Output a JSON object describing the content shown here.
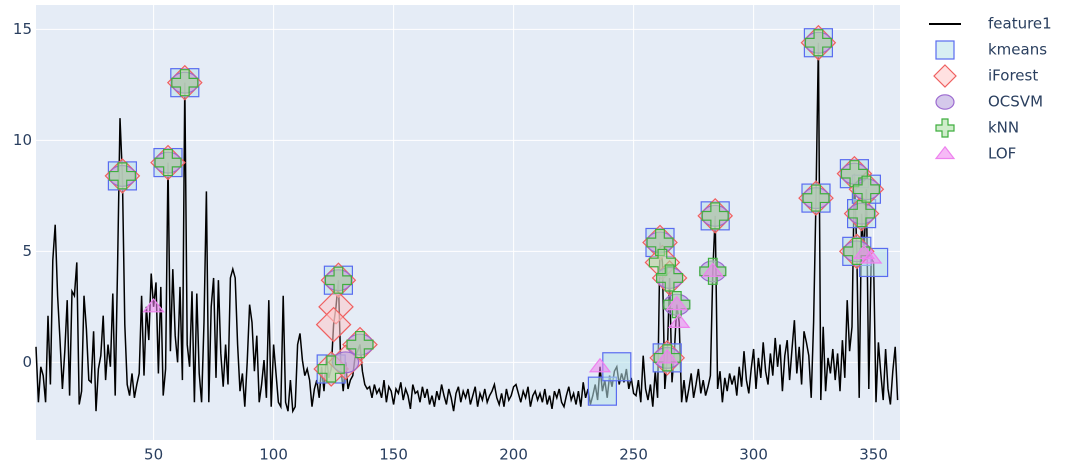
{
  "chart_data": {
    "type": "line",
    "xlim": [
      1,
      361
    ],
    "ylim": [
      -3.5,
      16.1
    ],
    "xticks": [
      50,
      100,
      150,
      200,
      250,
      300,
      350
    ],
    "yticks": [
      0,
      5,
      10,
      15
    ],
    "grid": true,
    "series": [
      {
        "name": "feature1",
        "color": "#000000",
        "symbol": "line",
        "x": [
          1,
          2,
          3,
          4,
          5,
          6,
          7,
          8,
          9,
          10,
          11,
          12,
          13,
          14,
          15,
          16,
          17,
          18,
          19,
          20,
          21,
          22,
          23,
          24,
          25,
          26,
          27,
          28,
          29,
          30,
          31,
          32,
          33,
          34,
          35,
          36,
          37,
          38,
          39,
          40,
          41,
          42,
          43,
          44,
          45,
          46,
          47,
          48,
          49,
          50,
          51,
          52,
          53,
          54,
          55,
          56,
          57,
          58,
          59,
          60,
          61,
          62,
          63,
          64,
          65,
          66,
          67,
          68,
          69,
          70,
          71,
          72,
          73,
          74,
          75,
          76,
          77,
          78,
          79,
          80,
          81,
          82,
          83,
          84,
          85,
          86,
          87,
          88,
          89,
          90,
          91,
          92,
          93,
          94,
          95,
          96,
          97,
          98,
          99,
          100,
          101,
          102,
          103,
          104,
          105,
          106,
          107,
          108,
          109,
          110,
          111,
          112,
          113,
          114,
          115,
          116,
          117,
          118,
          119,
          120,
          121,
          122,
          123,
          124,
          125,
          126,
          127,
          128,
          129,
          130,
          131,
          132,
          133,
          134,
          135,
          136,
          137,
          138,
          139,
          140,
          141,
          142,
          143,
          144,
          145,
          146,
          147,
          148,
          149,
          150,
          151,
          152,
          153,
          154,
          155,
          156,
          157,
          158,
          159,
          160,
          161,
          162,
          163,
          164,
          165,
          166,
          167,
          168,
          169,
          170,
          171,
          172,
          173,
          174,
          175,
          176,
          177,
          178,
          179,
          180,
          181,
          182,
          183,
          184,
          185,
          186,
          187,
          188,
          189,
          190,
          191,
          192,
          193,
          194,
          195,
          196,
          197,
          198,
          199,
          200,
          201,
          202,
          203,
          204,
          205,
          206,
          207,
          208,
          209,
          210,
          211,
          212,
          213,
          214,
          215,
          216,
          217,
          218,
          219,
          220,
          221,
          222,
          223,
          224,
          225,
          226,
          227,
          228,
          229,
          230,
          231,
          232,
          233,
          234,
          235,
          236,
          237,
          238,
          239,
          240,
          241,
          242,
          243,
          244,
          245,
          246,
          247,
          248,
          249,
          250,
          251,
          252,
          253,
          254,
          255,
          256,
          257,
          258,
          259,
          260,
          261,
          262,
          263,
          264,
          265,
          266,
          267,
          268,
          269,
          270,
          271,
          272,
          273,
          274,
          275,
          276,
          277,
          278,
          279,
          280,
          281,
          282,
          283,
          284,
          285,
          286,
          287,
          288,
          289,
          290,
          291,
          292,
          293,
          294,
          295,
          296,
          297,
          298,
          299,
          300,
          301,
          302,
          303,
          304,
          305,
          306,
          307,
          308,
          309,
          310,
          311,
          312,
          313,
          314,
          315,
          316,
          317,
          318,
          319,
          320,
          321,
          322,
          323,
          324,
          325,
          326,
          327,
          328,
          329,
          330,
          331,
          332,
          333,
          334,
          335,
          336,
          337,
          338,
          339,
          340,
          341,
          342,
          343,
          344,
          345,
          346,
          347,
          348,
          349,
          350,
          351,
          352,
          353,
          354,
          355,
          356,
          357,
          358,
          359,
          360
        ],
        "values": [
          0.7,
          -1.8,
          -0.2,
          -0.6,
          -1.8,
          2.1,
          -1.0,
          4.6,
          6.2,
          3.0,
          1.0,
          -1.2,
          0.5,
          2.8,
          -1.5,
          3.2,
          3.0,
          4.5,
          -1.9,
          -1.3,
          3.0,
          1.5,
          -0.8,
          -0.9,
          1.4,
          -2.2,
          -0.3,
          0.3,
          2.1,
          -0.8,
          0.8,
          -0.2,
          3.1,
          -1.5,
          4.4,
          11.0,
          8.4,
          1.7,
          -1.0,
          -1.5,
          -0.5,
          -1.6,
          -1.0,
          -0.5,
          3.0,
          -0.6,
          2.5,
          1.0,
          4.0,
          2.5,
          3.6,
          -0.5,
          3.4,
          -1.5,
          -0.3,
          9.0,
          0.5,
          4.2,
          1.2,
          0.0,
          3.4,
          -0.8,
          12.6,
          0.8,
          -0.2,
          3.2,
          -1.8,
          3.1,
          -0.5,
          -1.8,
          1.8,
          7.7,
          -1.8,
          2.5,
          3.8,
          -0.7,
          3.7,
          0.4,
          -1.1,
          0.8,
          -1.0,
          3.8,
          4.2,
          3.8,
          0.8,
          -1.3,
          -0.5,
          -2.0,
          0.0,
          2.6,
          1.8,
          -0.4,
          1.2,
          -1.8,
          -1.0,
          0.1,
          -1.6,
          2.8,
          -2.0,
          0.8,
          -0.5,
          -1.8,
          -2.0,
          3.0,
          -1.8,
          -2.2,
          -0.8,
          -2.2,
          -2.0,
          0.8,
          1.3,
          0.1,
          -0.6,
          -0.3,
          -0.8,
          -2.0,
          -1.2,
          -0.8,
          -1.6,
          -0.2,
          -1.3,
          0.3,
          -0.7,
          -0.3,
          1.7,
          2.5,
          3.7,
          -0.2,
          -1.3,
          0.0,
          -1.2,
          -0.8,
          -0.6,
          0.3,
          0.5,
          0.8,
          -0.4,
          -1.0,
          -1.2,
          -1.1,
          -1.6,
          -1.0,
          -1.4,
          -1.2,
          -1.6,
          -0.8,
          -1.8,
          -1.1,
          -1.3,
          -1.9,
          -1.2,
          -1.4,
          -0.9,
          -1.7,
          -1.2,
          -1.5,
          -2.1,
          -1.0,
          -1.4,
          -1.3,
          -1.8,
          -1.1,
          -1.6,
          -1.2,
          -1.9,
          -1.5,
          -2.0,
          -1.3,
          -1.7,
          -1.0,
          -1.5,
          -1.9,
          -1.2,
          -1.6,
          -2.2,
          -1.4,
          -1.1,
          -1.8,
          -1.3,
          -1.6,
          -1.2,
          -1.9,
          -1.5,
          -1.1,
          -2.0,
          -1.4,
          -1.7,
          -1.2,
          -1.8,
          -1.5,
          -1.3,
          -1.0,
          -1.6,
          -1.9,
          -1.4,
          -2.0,
          -1.2,
          -1.7,
          -1.5,
          -1.1,
          -1.0,
          -1.4,
          -1.8,
          -1.3,
          -1.6,
          -1.1,
          -2.0,
          -1.5,
          -1.3,
          -1.7,
          -1.4,
          -1.8,
          -1.2,
          -1.9,
          -1.5,
          -2.1,
          -1.3,
          -1.6,
          -1.2,
          -1.8,
          -2.0,
          -1.5,
          -1.1,
          -1.7,
          -1.4,
          -1.9,
          -1.3,
          -2.0,
          -0.9,
          -1.6,
          -1.2,
          -1.9,
          -1.5,
          -1.0,
          -1.7,
          -0.2,
          -1.3,
          -0.8,
          -1.6,
          -0.6,
          -1.1,
          -0.4,
          -0.2,
          -1.0,
          -0.5,
          -0.9,
          -0.3,
          -1.2,
          -0.7,
          -1.4,
          -1.5,
          -0.8,
          -1.8,
          0.3,
          -1.2,
          -1.7,
          -1.0,
          -2.0,
          -0.4,
          -1.6,
          5.4,
          4.5,
          -1.2,
          0.2,
          3.8,
          -0.9,
          0.5,
          2.6,
          1.8,
          -1.8,
          -0.8,
          -1.8,
          -1.2,
          -0.5,
          -1.6,
          -1.0,
          -0.3,
          -1.4,
          -0.8,
          -1.5,
          -1.1,
          -0.6,
          4.1,
          6.6,
          -1.2,
          -0.4,
          -1.8,
          -0.7,
          -1.3,
          -0.5,
          -1.0,
          -0.6,
          -1.5,
          -0.2,
          -1.1,
          0.5,
          -0.8,
          -1.4,
          -0.3,
          0.6,
          -1.2,
          0.2,
          -0.7,
          0.9,
          -0.4,
          -1.0,
          0.4,
          -0.6,
          1.1,
          -0.2,
          0.8,
          -1.3,
          0.3,
          1.0,
          -0.8,
          0.6,
          1.9,
          -0.5,
          0.7,
          -1.0,
          1.4,
          0.9,
          0.3,
          -1.6,
          1.8,
          7.4,
          14.4,
          -1.7,
          1.6,
          -1.3,
          0.2,
          -0.5,
          0.6,
          -0.8,
          0.4,
          -1.3,
          1.0,
          -0.7,
          2.8,
          0.5,
          1.6,
          8.5,
          5.0,
          -1.6,
          6.7,
          4.9,
          7.8,
          -1.2,
          4.7,
          4.5,
          -1.8,
          0.9,
          -0.5,
          -1.7,
          0.6,
          -1.2,
          -1.9,
          -0.4,
          0.7,
          -1.7
        ]
      },
      {
        "name": "kmeans",
        "color": "#b8e2ea",
        "edge_color": "#5a6cf0",
        "symbol": "square",
        "x": [
          37,
          56,
          63,
          127,
          124,
          261,
          264,
          284,
          327,
          326,
          342,
          345,
          347,
          343,
          350,
          237,
          243
        ],
        "values": [
          8.4,
          9.0,
          12.6,
          3.7,
          -0.3,
          5.4,
          0.2,
          6.6,
          14.4,
          7.4,
          8.5,
          6.7,
          7.8,
          5.0,
          4.5,
          -1.3,
          -0.2
        ]
      },
      {
        "name": "iForest",
        "color": "#ffc8c8",
        "edge_color": "#ef6060",
        "symbol": "diamond",
        "x": [
          37,
          56,
          63,
          127,
          126,
          125,
          124,
          136,
          261,
          262,
          265,
          284,
          327,
          326,
          342,
          345,
          347,
          343,
          264,
          130
        ],
        "values": [
          8.4,
          9.0,
          12.6,
          3.7,
          2.5,
          1.7,
          -0.3,
          0.8,
          5.4,
          4.5,
          3.8,
          6.6,
          14.4,
          7.4,
          8.5,
          6.7,
          7.8,
          5.0,
          0.2,
          0.0
        ]
      },
      {
        "name": "OCSVM",
        "color": "#b39ddb",
        "edge_color": "#9c6ad0",
        "symbol": "circle",
        "x": [
          37,
          56,
          63,
          127,
          130,
          136,
          261,
          264,
          265,
          268,
          283,
          284,
          327,
          326,
          342,
          345,
          347,
          343
        ],
        "values": [
          8.4,
          9.0,
          12.6,
          3.7,
          0.0,
          0.8,
          5.4,
          0.2,
          3.8,
          2.6,
          4.1,
          6.6,
          14.4,
          7.4,
          8.5,
          6.7,
          7.8,
          5.0
        ]
      },
      {
        "name": "kNN",
        "color": "#a8dca0",
        "edge_color": "#3fae3f",
        "symbol": "cross",
        "x": [
          37,
          56,
          63,
          127,
          124,
          136,
          261,
          262,
          264,
          265,
          268,
          283,
          284,
          327,
          326,
          342,
          345,
          347,
          343
        ],
        "values": [
          8.4,
          9.0,
          12.6,
          3.7,
          -0.3,
          0.8,
          5.4,
          4.5,
          0.2,
          3.8,
          2.6,
          4.1,
          6.6,
          14.4,
          7.4,
          8.5,
          6.7,
          7.8,
          5.0
        ]
      },
      {
        "name": "LOF",
        "color": "#ee82ee",
        "edge_color": "#ee82ee",
        "symbol": "triangle",
        "x": [
          50,
          236,
          269,
          283,
          346,
          349,
          264,
          268
        ],
        "values": [
          2.5,
          -0.2,
          1.8,
          4.1,
          4.9,
          4.7,
          0.2,
          2.6
        ]
      }
    ]
  }
}
